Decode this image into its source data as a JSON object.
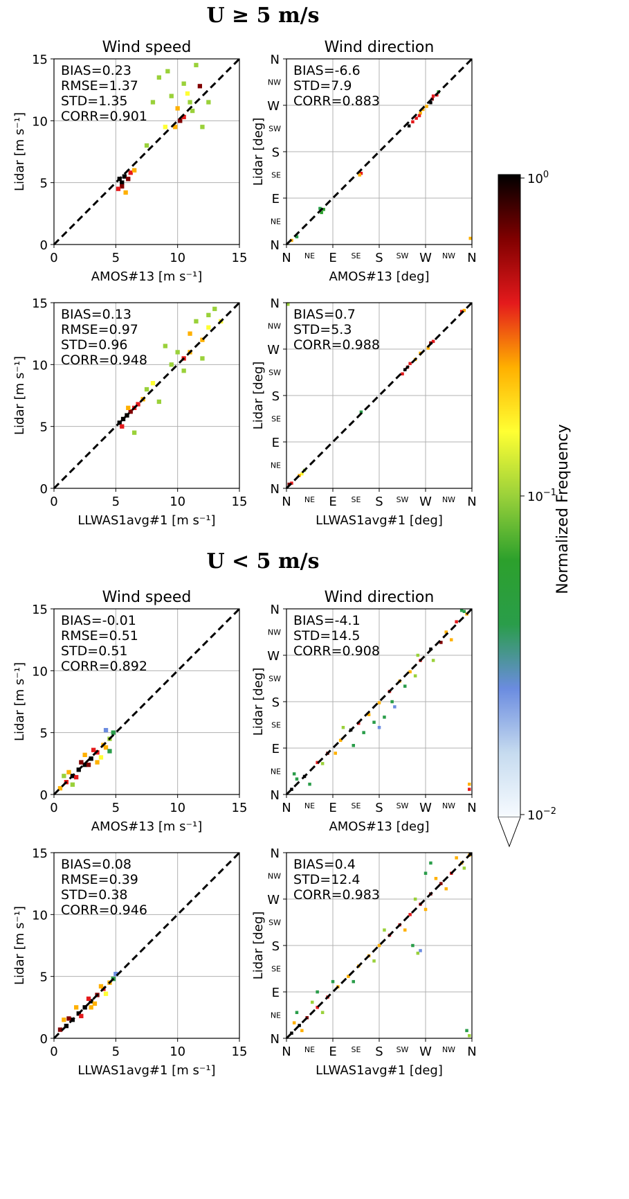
{
  "sections": [
    {
      "title": "U ≥ 5 m/s"
    },
    {
      "title": "U < 5 m/s"
    }
  ],
  "speed_ticks": [
    "0",
    "5",
    "10",
    "15"
  ],
  "dir_ticks_major": [
    "N",
    "E",
    "S",
    "W",
    "N"
  ],
  "dir_ticks_minor": [
    "NE",
    "SE",
    "SW",
    "NW"
  ],
  "colorbar": {
    "label": "Normalized Frequency",
    "tick_top_base": "10",
    "tick_top_exp": "0",
    "tick_mid_base": "10",
    "tick_mid_exp": "−1",
    "tick_bot_base": "10",
    "tick_bot_exp": "−2",
    "colors": [
      "#f7fbff",
      "#c6dbef",
      "#6b8ce0",
      "#2a9d4a",
      "#2ca02c",
      "#9ad13a",
      "#ffff33",
      "#ffb000",
      "#e41a1c",
      "#800000",
      "#000000"
    ]
  },
  "chart_data": [
    {
      "type": "heatmap",
      "section": "U ≥ 5 m/s",
      "title": "Wind speed",
      "xlabel": "AMOS#13 [m s⁻¹]",
      "ylabel": "Lidar [m s⁻¹]",
      "xlim": [
        0,
        15
      ],
      "ylim": [
        0,
        15
      ],
      "stats": [
        "BIAS=0.23",
        "RMSE=1.37",
        "STD=1.35",
        "CORR=0.901"
      ],
      "cells": [
        [
          5.5,
          5.0,
          1.0
        ],
        [
          5.3,
          5.3,
          0.9
        ],
        [
          5.7,
          5.5,
          0.8
        ],
        [
          5.5,
          4.7,
          0.7
        ],
        [
          6.0,
          5.3,
          0.6
        ],
        [
          5.2,
          4.5,
          0.4
        ],
        [
          6.2,
          5.8,
          0.35
        ],
        [
          5.8,
          4.2,
          0.3
        ],
        [
          6.5,
          6.0,
          0.25
        ],
        [
          10.2,
          10.0,
          0.6
        ],
        [
          10.5,
          10.3,
          0.35
        ],
        [
          9.8,
          9.5,
          0.3
        ],
        [
          11.8,
          12.8,
          0.7
        ],
        [
          10.0,
          11.0,
          0.2
        ],
        [
          9.0,
          9.5,
          0.15
        ],
        [
          11.0,
          11.5,
          0.12
        ],
        [
          9.5,
          12.0,
          0.1
        ],
        [
          8.5,
          13.5,
          0.1
        ],
        [
          11.5,
          14.5,
          0.1
        ],
        [
          12.0,
          9.5,
          0.1
        ],
        [
          7.5,
          8.0,
          0.12
        ],
        [
          10.8,
          12.2,
          0.15
        ],
        [
          11.2,
          10.8,
          0.1
        ],
        [
          8.0,
          11.5,
          0.1
        ],
        [
          12.5,
          11.5,
          0.1
        ],
        [
          9.2,
          14.0,
          0.1
        ],
        [
          10.5,
          13.0,
          0.12
        ]
      ]
    },
    {
      "type": "heatmap",
      "section": "U ≥ 5 m/s",
      "title": "Wind direction",
      "xlabel": "AMOS#13 [deg]",
      "ylabel": "Lidar [deg]",
      "xlim": [
        0,
        360
      ],
      "ylim": [
        0,
        360
      ],
      "stats": [
        "BIAS=-6.6",
        "STD=7.9",
        "CORR=0.883"
      ],
      "cells": [
        [
          280,
          275,
          1.0
        ],
        [
          283,
          282,
          0.6
        ],
        [
          285,
          288,
          0.5
        ],
        [
          272,
          268,
          0.3
        ],
        [
          292,
          290,
          0.35
        ],
        [
          238,
          230,
          0.8
        ],
        [
          245,
          238,
          0.5
        ],
        [
          252,
          245,
          0.4
        ],
        [
          260,
          255,
          0.3
        ],
        [
          258,
          250,
          0.5
        ],
        [
          265,
          262,
          0.2
        ],
        [
          145,
          138,
          0.5
        ],
        [
          142,
          135,
          0.3
        ],
        [
          68,
          62,
          0.06
        ],
        [
          72,
          68,
          0.07
        ],
        [
          65,
          70,
          0.05
        ],
        [
          20,
          15,
          0.05
        ],
        [
          10,
          8,
          0.2
        ],
        [
          358,
          12,
          0.3
        ],
        [
          295,
          296,
          0.06
        ]
      ]
    },
    {
      "type": "heatmap",
      "section": "U ≥ 5 m/s",
      "title": "",
      "xlabel": "LLWAS1avg#1 [m s⁻¹]",
      "ylabel": "Lidar [m s⁻¹]",
      "xlim": [
        0,
        15
      ],
      "ylim": [
        0,
        15
      ],
      "stats": [
        "BIAS=0.13",
        "RMSE=0.97",
        "STD=0.96",
        "CORR=0.948"
      ],
      "cells": [
        [
          5.3,
          5.3,
          1.0
        ],
        [
          5.6,
          5.6,
          0.9
        ],
        [
          5.9,
          5.9,
          0.8
        ],
        [
          6.2,
          6.2,
          0.7
        ],
        [
          6.5,
          6.5,
          0.5
        ],
        [
          6.8,
          6.8,
          0.4
        ],
        [
          5.5,
          5.0,
          0.4
        ],
        [
          6.0,
          6.5,
          0.3
        ],
        [
          7.2,
          7.2,
          0.25
        ],
        [
          10.5,
          10.5,
          0.4
        ],
        [
          11.0,
          11.0,
          0.3
        ],
        [
          12.0,
          12.0,
          0.3
        ],
        [
          10.0,
          11.0,
          0.1
        ],
        [
          11.5,
          13.5,
          0.1
        ],
        [
          12.5,
          13.0,
          0.15
        ],
        [
          9.5,
          10.0,
          0.1
        ],
        [
          8.0,
          8.5,
          0.15
        ],
        [
          9.0,
          11.5,
          0.1
        ],
        [
          13.0,
          14.5,
          0.1
        ],
        [
          12.0,
          10.5,
          0.1
        ],
        [
          6.5,
          4.5,
          0.1
        ],
        [
          8.5,
          7.0,
          0.1
        ],
        [
          11.0,
          12.5,
          0.2
        ],
        [
          10.5,
          9.5,
          0.1
        ],
        [
          12.5,
          14.0,
          0.1
        ],
        [
          7.5,
          8.0,
          0.1
        ],
        [
          13.5,
          13.5,
          0.15
        ]
      ]
    },
    {
      "type": "heatmap",
      "section": "U ≥ 5 m/s",
      "title": "",
      "xlabel": "LLWAS1avg#1 [deg]",
      "ylabel": "Lidar [deg]",
      "xlim": [
        0,
        360
      ],
      "ylim": [
        0,
        360
      ],
      "stats": [
        "BIAS=0.7",
        "STD=5.3",
        "CORR=0.988"
      ],
      "cells": [
        [
          230,
          230,
          1.0
        ],
        [
          235,
          235,
          0.7
        ],
        [
          240,
          242,
          0.5
        ],
        [
          225,
          222,
          0.4
        ],
        [
          250,
          250,
          0.3
        ],
        [
          260,
          262,
          0.2
        ],
        [
          280,
          282,
          0.6
        ],
        [
          285,
          285,
          0.5
        ],
        [
          275,
          272,
          0.3
        ],
        [
          145,
          148,
          0.05
        ],
        [
          30,
          28,
          0.15
        ],
        [
          25,
          25,
          0.3
        ],
        [
          35,
          35,
          0.12
        ],
        [
          5,
          8,
          0.6
        ],
        [
          10,
          10,
          0.4
        ],
        [
          340,
          343,
          0.5
        ],
        [
          345,
          345,
          0.25
        ],
        [
          2,
          358,
          0.1
        ]
      ]
    },
    {
      "type": "heatmap",
      "section": "U < 5 m/s",
      "title": "Wind speed",
      "xlabel": "AMOS#13 [m s⁻¹]",
      "ylabel": "Lidar [m s⁻¹]",
      "xlim": [
        0,
        15
      ],
      "ylim": [
        0,
        15
      ],
      "stats": [
        "BIAS=-0.01",
        "RMSE=0.51",
        "STD=0.51",
        "CORR=0.892"
      ],
      "cells": [
        [
          2.0,
          2.0,
          1.0
        ],
        [
          2.5,
          2.4,
          1.0
        ],
        [
          1.5,
          1.5,
          0.8
        ],
        [
          3.0,
          2.9,
          0.8
        ],
        [
          1.0,
          1.0,
          0.5
        ],
        [
          3.5,
          3.4,
          0.5
        ],
        [
          4.0,
          4.0,
          0.3
        ],
        [
          2.2,
          2.6,
          0.6
        ],
        [
          2.8,
          2.4,
          0.6
        ],
        [
          1.8,
          1.4,
          0.4
        ],
        [
          3.2,
          3.6,
          0.4
        ],
        [
          4.2,
          3.8,
          0.2
        ],
        [
          4.5,
          4.5,
          0.1
        ],
        [
          4.8,
          5.0,
          0.04
        ],
        [
          0.5,
          0.5,
          0.2
        ],
        [
          1.2,
          1.8,
          0.3
        ],
        [
          3.8,
          3.0,
          0.15
        ],
        [
          4.5,
          3.5,
          0.05
        ],
        [
          2.5,
          3.2,
          0.2
        ],
        [
          3.5,
          2.6,
          0.2
        ],
        [
          4.2,
          5.2,
          0.03
        ],
        [
          0.8,
          1.5,
          0.1
        ],
        [
          1.5,
          0.8,
          0.1
        ]
      ]
    },
    {
      "type": "heatmap",
      "section": "U < 5 m/s",
      "title": "Wind direction",
      "xlabel": "AMOS#13 [deg]",
      "ylabel": "Lidar [deg]",
      "xlim": [
        0,
        360
      ],
      "ylim": [
        0,
        360
      ],
      "stats": [
        "BIAS=-4.1",
        "STD=14.5",
        "CORR=0.908"
      ],
      "cells": [
        [
          10,
          10,
          0.8
        ],
        [
          35,
          35,
          0.9
        ],
        [
          60,
          62,
          0.5
        ],
        [
          80,
          80,
          0.6
        ],
        [
          105,
          105,
          0.3
        ],
        [
          125,
          125,
          0.9
        ],
        [
          140,
          138,
          0.4
        ],
        [
          160,
          155,
          0.3
        ],
        [
          180,
          178,
          0.2
        ],
        [
          200,
          200,
          0.4
        ],
        [
          220,
          220,
          0.3
        ],
        [
          240,
          238,
          0.2
        ],
        [
          260,
          260,
          0.4
        ],
        [
          280,
          282,
          0.9
        ],
        [
          300,
          295,
          0.6
        ],
        [
          310,
          315,
          0.3
        ],
        [
          330,
          335,
          0.5
        ],
        [
          350,
          350,
          0.3
        ],
        [
          355,
          10,
          0.5
        ],
        [
          355,
          20,
          0.3
        ],
        [
          345,
          355,
          0.05
        ],
        [
          20,
          30,
          0.05
        ],
        [
          45,
          20,
          0.05
        ],
        [
          70,
          60,
          0.1
        ],
        [
          95,
          80,
          0.2
        ],
        [
          110,
          130,
          0.1
        ],
        [
          150,
          120,
          0.05
        ],
        [
          170,
          140,
          0.05
        ],
        [
          190,
          150,
          0.05
        ],
        [
          205,
          180,
          0.05
        ],
        [
          230,
          210,
          0.05
        ],
        [
          255,
          270,
          0.1
        ],
        [
          285,
          260,
          0.1
        ],
        [
          320,
          300,
          0.2
        ],
        [
          340,
          360,
          0.05
        ],
        [
          15,
          40,
          0.05
        ],
        [
          130,
          95,
          0.05
        ],
        [
          180,
          130,
          0.03
        ],
        [
          210,
          170,
          0.03
        ],
        [
          250,
          230,
          0.1
        ]
      ]
    },
    {
      "type": "heatmap",
      "section": "U < 5 m/s",
      "title": "",
      "xlabel": "LLWAS1avg#1 [m s⁻¹]",
      "ylabel": "Lidar [m s⁻¹]",
      "xlim": [
        0,
        15
      ],
      "ylim": [
        0,
        15
      ],
      "stats": [
        "BIAS=0.08",
        "RMSE=0.39",
        "STD=0.38",
        "CORR=0.946"
      ],
      "cells": [
        [
          1.0,
          1.0,
          1.0
        ],
        [
          1.5,
          1.5,
          0.9
        ],
        [
          2.0,
          2.0,
          1.0
        ],
        [
          2.5,
          2.5,
          0.9
        ],
        [
          3.0,
          3.0,
          0.8
        ],
        [
          3.5,
          3.5,
          0.6
        ],
        [
          4.0,
          4.0,
          0.4
        ],
        [
          4.5,
          4.5,
          0.2
        ],
        [
          0.5,
          0.7,
          0.6
        ],
        [
          1.2,
          1.6,
          0.6
        ],
        [
          2.2,
          1.8,
          0.5
        ],
        [
          2.8,
          3.2,
          0.5
        ],
        [
          3.3,
          2.8,
          0.3
        ],
        [
          3.8,
          4.2,
          0.3
        ],
        [
          4.2,
          3.6,
          0.15
        ],
        [
          4.8,
          4.8,
          0.05
        ],
        [
          5.0,
          5.2,
          0.03
        ],
        [
          1.8,
          2.5,
          0.3
        ],
        [
          3.0,
          2.5,
          0.2
        ],
        [
          0.8,
          1.5,
          0.2
        ]
      ]
    },
    {
      "type": "heatmap",
      "section": "U < 5 m/s",
      "title": "",
      "xlabel": "LLWAS1avg#1 [deg]",
      "ylabel": "Lidar [deg]",
      "xlim": [
        0,
        360
      ],
      "ylim": [
        0,
        360
      ],
      "stats": [
        "BIAS=0.4",
        "STD=12.4",
        "CORR=0.983"
      ],
      "cells": [
        [
          10,
          10,
          0.8
        ],
        [
          25,
          25,
          1.0
        ],
        [
          40,
          40,
          0.6
        ],
        [
          60,
          60,
          0.5
        ],
        [
          80,
          80,
          0.4
        ],
        [
          100,
          100,
          0.3
        ],
        [
          120,
          120,
          0.3
        ],
        [
          140,
          140,
          0.2
        ],
        [
          160,
          160,
          0.3
        ],
        [
          180,
          180,
          0.2
        ],
        [
          200,
          200,
          0.5
        ],
        [
          220,
          220,
          0.4
        ],
        [
          240,
          240,
          0.5
        ],
        [
          260,
          260,
          0.4
        ],
        [
          280,
          280,
          0.6
        ],
        [
          300,
          300,
          0.7
        ],
        [
          320,
          320,
          0.5
        ],
        [
          340,
          340,
          0.3
        ],
        [
          355,
          355,
          0.3
        ],
        [
          358,
          358,
          1.0
        ],
        [
          15,
          30,
          0.2
        ],
        [
          30,
          15,
          0.2
        ],
        [
          50,
          70,
          0.1
        ],
        [
          70,
          50,
          0.1
        ],
        [
          90,
          110,
          0.05
        ],
        [
          130,
          110,
          0.05
        ],
        [
          170,
          150,
          0.1
        ],
        [
          190,
          210,
          0.1
        ],
        [
          230,
          210,
          0.2
        ],
        [
          250,
          270,
          0.1
        ],
        [
          270,
          250,
          0.2
        ],
        [
          290,
          310,
          0.2
        ],
        [
          310,
          290,
          0.3
        ],
        [
          330,
          350,
          0.2
        ],
        [
          345,
          330,
          0.1
        ],
        [
          245,
          180,
          0.05
        ],
        [
          255,
          165,
          0.08
        ],
        [
          260,
          170,
          0.03
        ],
        [
          350,
          15,
          0.05
        ],
        [
          355,
          5,
          0.1
        ],
        [
          20,
          50,
          0.05
        ],
        [
          60,
          90,
          0.05
        ],
        [
          270,
          320,
          0.05
        ],
        [
          280,
          340,
          0.05
        ]
      ]
    }
  ]
}
